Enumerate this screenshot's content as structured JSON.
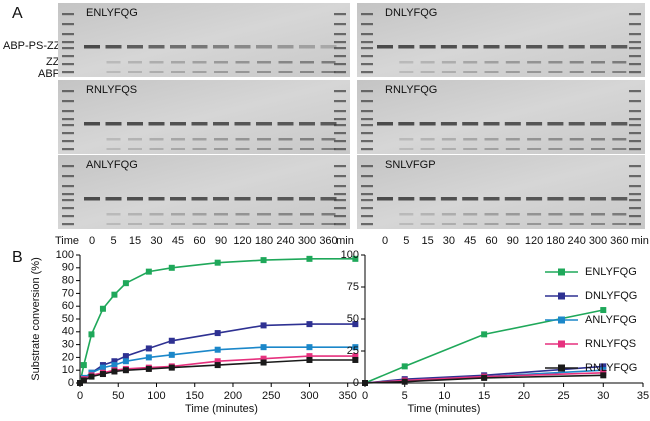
{
  "panel_labels": [
    "A",
    "B"
  ],
  "band_labels": [
    "ABP-PS-ZZ",
    "ZZ",
    "ABP"
  ],
  "gels": [
    {
      "label": "ENLYFQG"
    },
    {
      "label": "DNLYFQG"
    },
    {
      "label": "RNLYFQS"
    },
    {
      "label": "RNLYFQG"
    },
    {
      "label": "ANLYFQG"
    },
    {
      "label": "SNLVFGP"
    }
  ],
  "time_row": {
    "label": "Time",
    "values": [
      0,
      5,
      15,
      30,
      45,
      60,
      90,
      120,
      180,
      240,
      300,
      360
    ],
    "unit": "min"
  },
  "chart_data": [
    {
      "type": "line",
      "x_label": "Time (minutes)",
      "y_label": "Substrate conversion (%)",
      "x": [
        0,
        5,
        15,
        30,
        45,
        60,
        90,
        120,
        180,
        240,
        300,
        360
      ],
      "xlim": [
        0,
        370
      ],
      "xticks": [
        0,
        50,
        100,
        150,
        200,
        250,
        300,
        350
      ],
      "ylim": [
        0,
        100
      ],
      "yticks": [
        0,
        10,
        20,
        30,
        40,
        50,
        60,
        70,
        80,
        90,
        100
      ],
      "series": [
        {
          "name": "ENLYFQG",
          "color": "#1fa85a",
          "values": [
            0,
            14,
            38,
            58,
            69,
            78,
            87,
            90,
            94,
            96,
            97,
            97
          ]
        },
        {
          "name": "DNLYFQG",
          "color": "#2e3192",
          "values": [
            0,
            3,
            8,
            14,
            17,
            21,
            27,
            33,
            39,
            45,
            46,
            46
          ]
        },
        {
          "name": "ANLYFQG",
          "color": "#1b87c9",
          "values": [
            0,
            4,
            8,
            12,
            14,
            17,
            20,
            22,
            26,
            28,
            28,
            28
          ]
        },
        {
          "name": "RNLYFQS",
          "color": "#e6317e",
          "values": [
            0,
            3,
            6,
            8,
            10,
            11,
            12,
            13,
            17,
            19,
            21,
            21
          ]
        },
        {
          "name": "RNLYFQG",
          "color": "#1a1a1a",
          "values": [
            0,
            2,
            5,
            7,
            9,
            10,
            11,
            12,
            14,
            16,
            18,
            18
          ]
        }
      ]
    },
    {
      "type": "line",
      "x_label": "Time (minutes)",
      "x": [
        0,
        5,
        15,
        30
      ],
      "xlim": [
        0,
        35
      ],
      "xticks": [
        0,
        5,
        10,
        15,
        20,
        25,
        30,
        35
      ],
      "ylim": [
        0,
        100
      ],
      "yticks": [
        0,
        25,
        50,
        75,
        100
      ],
      "series": [
        {
          "color": "#1fa85a",
          "values": [
            0,
            13,
            38,
            57
          ]
        },
        {
          "color": "#2e3192",
          "values": [
            0,
            3,
            6,
            13
          ]
        },
        {
          "color": "#1b87c9",
          "values": [
            0,
            2,
            5,
            10
          ]
        },
        {
          "color": "#e6317e",
          "values": [
            0,
            2,
            5,
            8
          ]
        },
        {
          "color": "#1a1a1a",
          "values": [
            0,
            1,
            4,
            6
          ]
        }
      ]
    }
  ]
}
